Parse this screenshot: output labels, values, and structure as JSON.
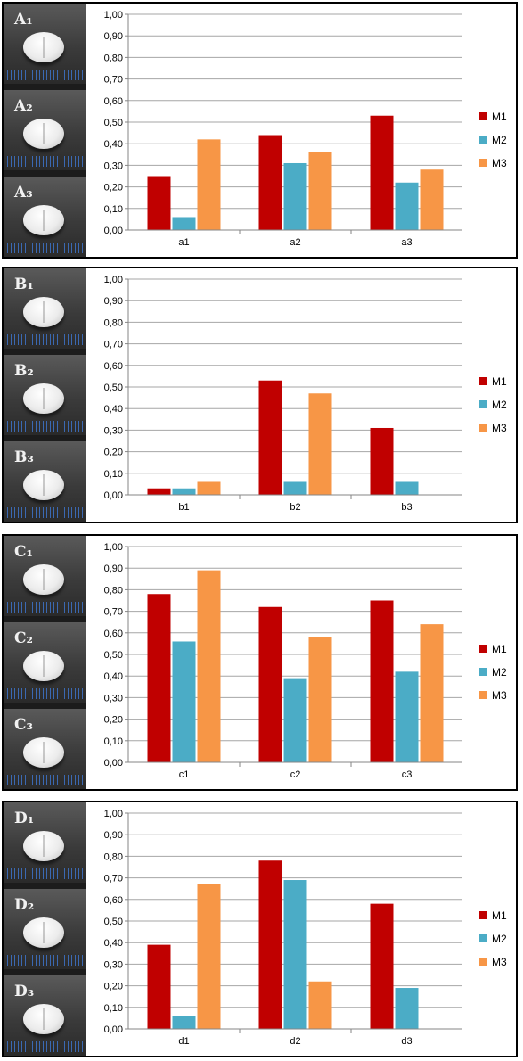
{
  "panels": [
    {
      "photo_labels": [
        "A₁",
        "A₂",
        "A₃"
      ],
      "chart_data": {
        "type": "bar",
        "categories": [
          "a1",
          "a2",
          "a3"
        ],
        "series": [
          {
            "name": "M1",
            "color": "#C00000",
            "values": [
              0.25,
              0.44,
              0.53
            ]
          },
          {
            "name": "M2",
            "color": "#4BACC6",
            "values": [
              0.06,
              0.31,
              0.22
            ]
          },
          {
            "name": "M3",
            "color": "#F79646",
            "values": [
              0.42,
              0.36,
              0.28
            ]
          }
        ],
        "ylim": [
          0,
          1
        ],
        "ytick_labels": [
          "0,00",
          "0,10",
          "0,20",
          "0,30",
          "0,40",
          "0,50",
          "0,60",
          "0,70",
          "0,80",
          "0,90",
          "1,00"
        ],
        "grid": true,
        "legend": "right"
      }
    },
    {
      "photo_labels": [
        "B₁",
        "B₂",
        "B₃"
      ],
      "chart_data": {
        "type": "bar",
        "categories": [
          "b1",
          "b2",
          "b3"
        ],
        "series": [
          {
            "name": "M1",
            "color": "#C00000",
            "values": [
              0.03,
              0.53,
              0.31
            ]
          },
          {
            "name": "M2",
            "color": "#4BACC6",
            "values": [
              0.03,
              0.06,
              0.06
            ]
          },
          {
            "name": "M3",
            "color": "#F79646",
            "values": [
              0.06,
              0.47,
              0
            ]
          }
        ],
        "ylim": [
          0,
          1
        ],
        "ytick_labels": [
          "0,00",
          "0,10",
          "0,20",
          "0,30",
          "0,40",
          "0,50",
          "0,60",
          "0,70",
          "0,80",
          "0,90",
          "1,00"
        ],
        "grid": true,
        "legend": "right"
      }
    },
    {
      "photo_labels": [
        "C₁",
        "C₂",
        "C₃"
      ],
      "chart_data": {
        "type": "bar",
        "categories": [
          "c1",
          "c2",
          "c3"
        ],
        "series": [
          {
            "name": "M1",
            "color": "#C00000",
            "values": [
              0.78,
              0.72,
              0.75
            ]
          },
          {
            "name": "M2",
            "color": "#4BACC6",
            "values": [
              0.56,
              0.39,
              0.42
            ]
          },
          {
            "name": "M3",
            "color": "#F79646",
            "values": [
              0.89,
              0.58,
              0.64
            ]
          }
        ],
        "ylim": [
          0,
          1
        ],
        "ytick_labels": [
          "0,00",
          "0,10",
          "0,20",
          "0,30",
          "0,40",
          "0,50",
          "0,60",
          "0,70",
          "0,80",
          "0,90",
          "1,00"
        ],
        "grid": true,
        "legend": "right"
      }
    },
    {
      "photo_labels": [
        "D₁",
        "D₂",
        "D₃"
      ],
      "chart_data": {
        "type": "bar",
        "categories": [
          "d1",
          "d2",
          "d3"
        ],
        "series": [
          {
            "name": "M1",
            "color": "#C00000",
            "values": [
              0.39,
              0.78,
              0.58
            ]
          },
          {
            "name": "M2",
            "color": "#4BACC6",
            "values": [
              0.06,
              0.69,
              0.19
            ]
          },
          {
            "name": "M3",
            "color": "#F79646",
            "values": [
              0.67,
              0.22,
              0
            ]
          }
        ],
        "ylim": [
          0,
          1
        ],
        "ytick_labels": [
          "0,00",
          "0,10",
          "0,20",
          "0,30",
          "0,40",
          "0,50",
          "0,60",
          "0,70",
          "0,80",
          "0,90",
          "1,00"
        ],
        "grid": true,
        "legend": "right"
      }
    }
  ]
}
